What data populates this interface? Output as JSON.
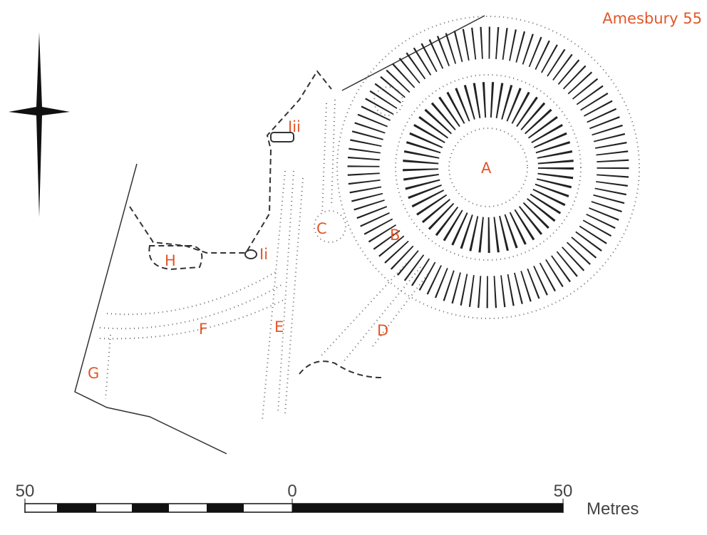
{
  "header": {
    "title": "Amesbury 55"
  },
  "features": {
    "labels": [
      "A",
      "B",
      "C",
      "D",
      "E",
      "F",
      "G",
      "H",
      "Ii",
      "Iii"
    ]
  },
  "scale_bar": {
    "labels": [
      "50",
      "0",
      "50"
    ],
    "unit": "Metres"
  }
}
